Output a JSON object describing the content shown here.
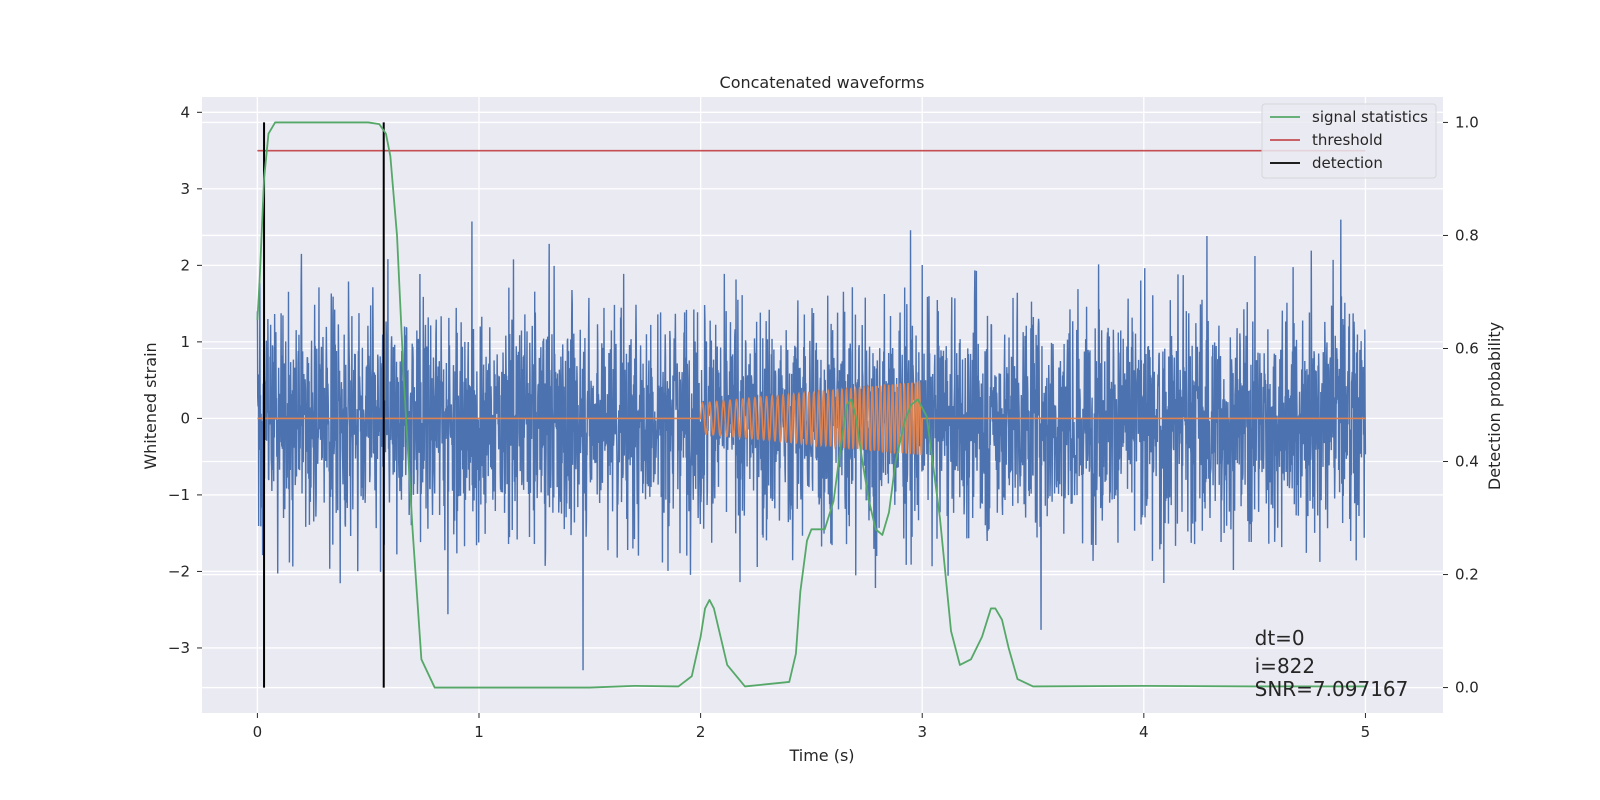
{
  "chart_data": {
    "type": "line",
    "title": "Concatenated waveforms",
    "xlabel": "Time (s)",
    "ylabel": "Whitened strain",
    "y2label": "Detection probability",
    "xlim": [
      -0.25,
      5.35
    ],
    "ylim": [
      -3.85,
      4.2
    ],
    "y2lim": [
      -0.045,
      1.045
    ],
    "xticks": [
      0,
      1,
      2,
      3,
      4,
      5
    ],
    "yticks": [
      -3,
      -2,
      -1,
      0,
      1,
      2,
      3,
      4
    ],
    "y2ticks": [
      0.0,
      0.2,
      0.4,
      0.6,
      0.8,
      1.0
    ],
    "tick_labels": {
      "x": [
        "0",
        "1",
        "2",
        "3",
        "4",
        "5"
      ],
      "y": [
        "−3",
        "−2",
        "−1",
        "0",
        "1",
        "2",
        "3",
        "4"
      ],
      "y2": [
        "0.0",
        "0.2",
        "0.4",
        "0.6",
        "0.8",
        "1.0"
      ]
    },
    "legend_position": "top-right",
    "grid": true,
    "series": [
      {
        "name": "whitened strain",
        "axis": "left",
        "color": "#4c72b0",
        "description": "noisy strain samples between 0 and 5 s, typical amplitude ~±1.3, extremes ~±3.4"
      },
      {
        "name": "injected waveform",
        "axis": "left",
        "color": "#dd8452",
        "segment": [
          2.0,
          3.0
        ],
        "amplitude_start": 0.2,
        "amplitude_end": 0.48
      },
      {
        "name": "signal statistics",
        "axis": "right",
        "color": "#55a868",
        "x": [
          0.0,
          0.01,
          0.03,
          0.05,
          0.08,
          0.12,
          0.3,
          0.5,
          0.55,
          0.58,
          0.6,
          0.63,
          0.66,
          0.7,
          0.74,
          0.8,
          1.0,
          1.5,
          1.7,
          1.9,
          1.96,
          2.0,
          2.02,
          2.04,
          2.06,
          2.09,
          2.12,
          2.2,
          2.4,
          2.43,
          2.45,
          2.48,
          2.5,
          2.56,
          2.6,
          2.63,
          2.66,
          2.68,
          2.7,
          2.73,
          2.76,
          2.79,
          2.82,
          2.85,
          2.88,
          2.92,
          2.95,
          2.98,
          3.02,
          3.08,
          3.13,
          3.17,
          3.22,
          3.27,
          3.31,
          3.33,
          3.36,
          3.39,
          3.43,
          3.5,
          4.0,
          4.5,
          5.0
        ],
        "values": [
          0.65,
          0.72,
          0.9,
          0.98,
          1.0,
          1.0,
          1.0,
          1.0,
          0.997,
          0.98,
          0.94,
          0.8,
          0.55,
          0.28,
          0.05,
          0.0,
          0.0,
          0.0,
          0.003,
          0.002,
          0.02,
          0.09,
          0.14,
          0.155,
          0.14,
          0.09,
          0.04,
          0.002,
          0.01,
          0.06,
          0.17,
          0.26,
          0.28,
          0.28,
          0.33,
          0.42,
          0.5,
          0.51,
          0.48,
          0.4,
          0.33,
          0.28,
          0.27,
          0.31,
          0.4,
          0.47,
          0.5,
          0.51,
          0.48,
          0.3,
          0.1,
          0.04,
          0.05,
          0.09,
          0.14,
          0.14,
          0.12,
          0.07,
          0.015,
          0.002,
          0.003,
          0.002,
          0.002
        ]
      },
      {
        "name": "threshold",
        "axis": "right",
        "color": "#c44e52",
        "value": 0.95,
        "x_range": [
          0.0,
          5.0
        ]
      },
      {
        "name": "detection",
        "axis": "right",
        "color": "#000000",
        "x": [
          0.03,
          0.57
        ],
        "y_range": [
          0.0,
          1.0
        ]
      }
    ],
    "legend": [
      {
        "label": "signal statistics",
        "color": "#55a868"
      },
      {
        "label": "threshold",
        "color": "#c44e52"
      },
      {
        "label": "detection",
        "color": "#000000"
      }
    ],
    "annotations": [
      {
        "text": "dt=0",
        "x": 4.5,
        "y_frac": 0.11
      },
      {
        "text": "i=822",
        "x": 4.5,
        "y_frac": 0.065
      },
      {
        "text": "SNR=7.097167",
        "x": 4.5,
        "y_frac": 0.028
      }
    ]
  }
}
